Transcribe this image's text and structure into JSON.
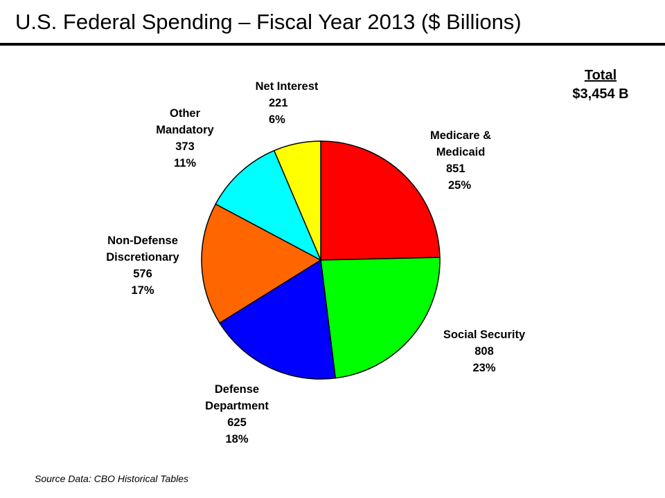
{
  "title": "U.S. Federal Spending – Fiscal Year 2013 ($ Billions)",
  "total": {
    "heading": "Total",
    "value": "$3,454 B"
  },
  "source": "Source Data: CBO Historical Tables",
  "chart_data": {
    "type": "pie",
    "title": "U.S. Federal Spending – Fiscal Year 2013 ($ Billions)",
    "unit": "$ Billions",
    "total": 3454,
    "start": "12 o'clock, clockwise",
    "slices": [
      {
        "label": "Medicare & Medicaid",
        "value": 851,
        "percent": "25%",
        "color": "#ff0000"
      },
      {
        "label": "Social Security",
        "value": 808,
        "percent": "23%",
        "color": "#00ff00"
      },
      {
        "label": "Defense Department",
        "value": 625,
        "percent": "18%",
        "color": "#0000ff"
      },
      {
        "label": "Non-Defense Discretionary",
        "value": 576,
        "percent": "17%",
        "color": "#ff6600"
      },
      {
        "label": "Other Mandatory",
        "value": 373,
        "percent": "11%",
        "color": "#00ffff"
      },
      {
        "label": "Net Interest",
        "value": 221,
        "percent": "6%",
        "color": "#ffff00"
      }
    ]
  },
  "labels": {
    "medicare": {
      "line1": "Medicare &",
      "line2": "Medicaid",
      "value": "851",
      "percent": "25%"
    },
    "social_security": {
      "line1": "Social Security",
      "value": "808",
      "percent": "23%"
    },
    "defense": {
      "line1": "Defense",
      "line2": "Department",
      "value": "625",
      "percent": "18%"
    },
    "non_defense": {
      "line1": "Non-Defense",
      "line2": "Discretionary",
      "value": "576",
      "percent": "17%"
    },
    "other_mandatory": {
      "line1": "Other",
      "line2": "Mandatory",
      "value": "373",
      "percent": "11%"
    },
    "net_interest": {
      "line1": "Net Interest",
      "value": "221",
      "percent": "6%"
    }
  }
}
